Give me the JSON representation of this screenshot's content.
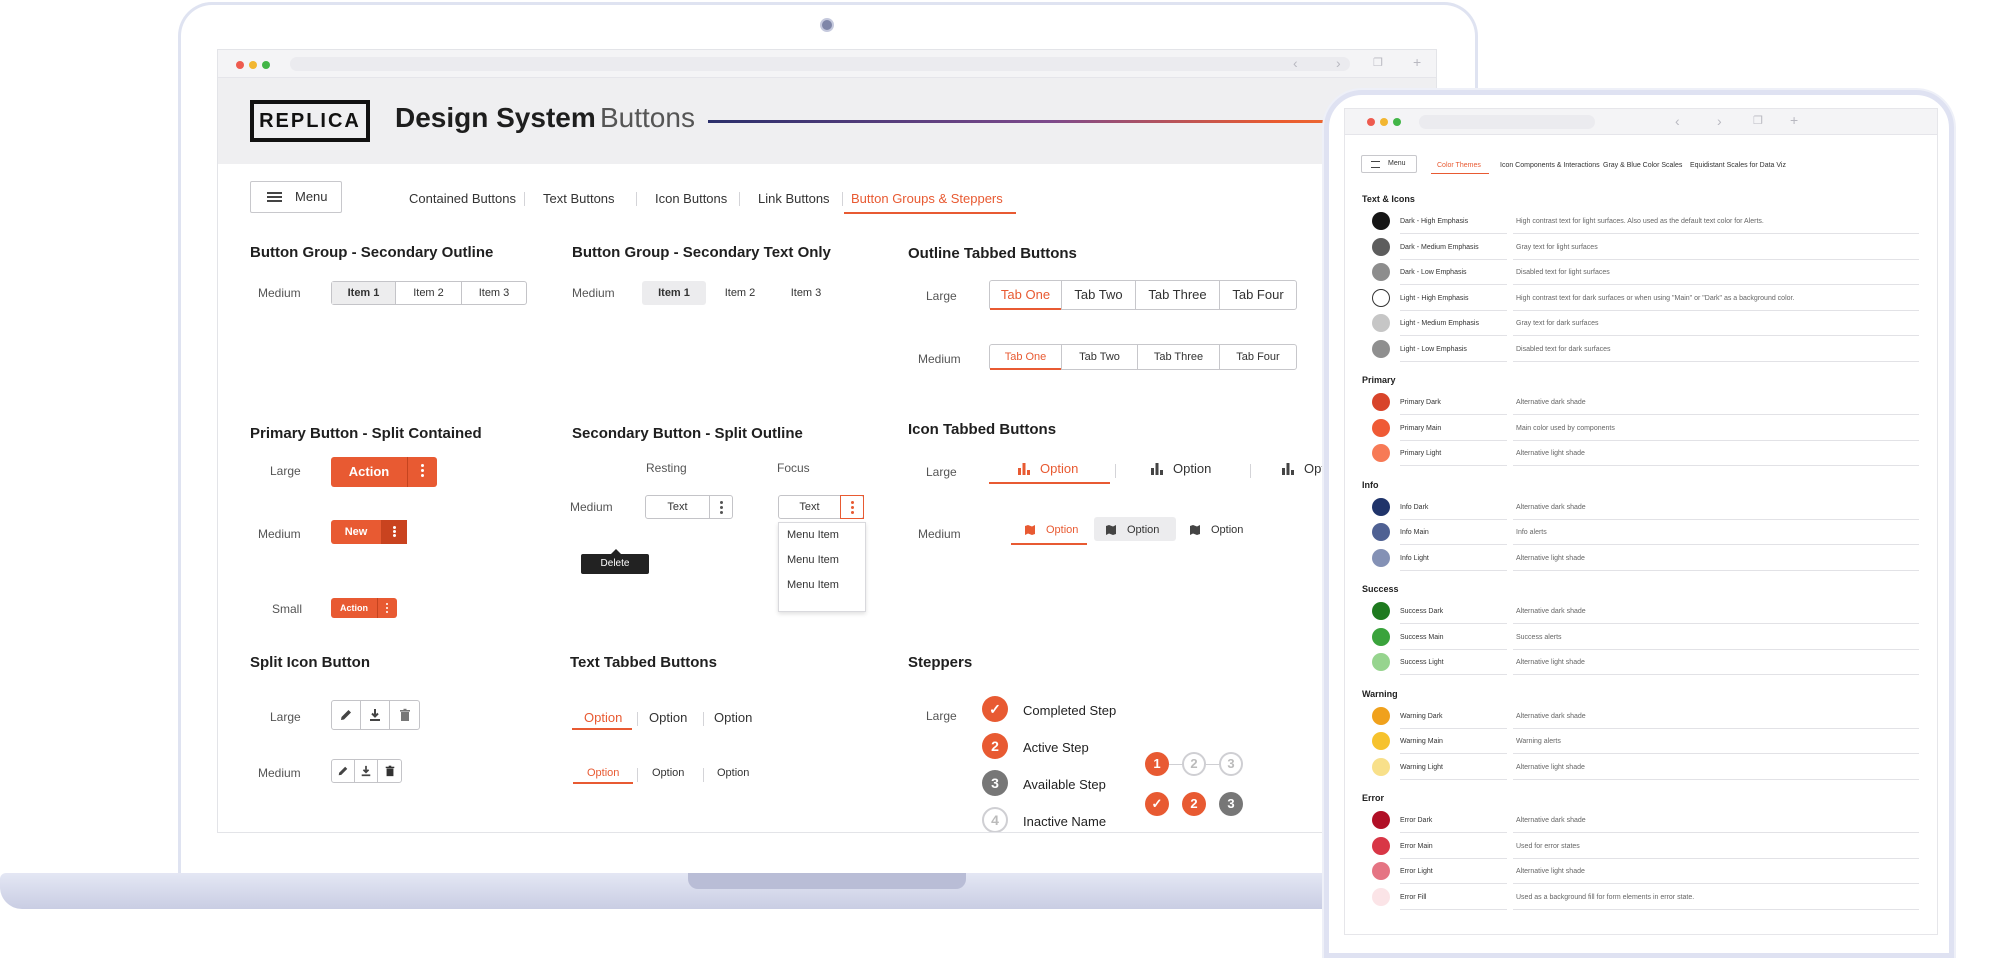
{
  "app": {
    "logo": "REPLICA",
    "title": "Design System",
    "subtitle": "Buttons",
    "menu_label": "Menu"
  },
  "top_tabs": [
    {
      "label": "Contained Buttons",
      "selected": false
    },
    {
      "label": "Text Buttons",
      "selected": false
    },
    {
      "label": "Icon Buttons",
      "selected": false
    },
    {
      "label": "Link Buttons",
      "selected": false
    },
    {
      "label": "Button Groups & Steppers",
      "selected": true
    }
  ],
  "accent_color": "#e85a32",
  "sections": {
    "bg_outline": {
      "title": "Button Group - Secondary Outline",
      "size": "Medium",
      "items": [
        "Item 1",
        "Item 2",
        "Item 3"
      ]
    },
    "bg_text": {
      "title": "Button Group - Secondary Text Only",
      "size": "Medium",
      "items": [
        "Item 1",
        "Item 2",
        "Item 3"
      ]
    },
    "outline_tabbed": {
      "title": "Outline Tabbed Buttons",
      "sizes": [
        "Large",
        "Medium"
      ],
      "tabs": [
        "Tab One",
        "Tab Two",
        "Tab Three",
        "Tab Four"
      ]
    },
    "split_contained": {
      "title": "Primary Button - Split Contained",
      "sizes": [
        "Large",
        "Medium",
        "Small"
      ],
      "large_label": "Action",
      "medium_label": "New",
      "small_label": "Action",
      "tooltip": "Delete"
    },
    "split_outline": {
      "title": "Secondary Button - Split Outline",
      "states": [
        "Resting",
        "Focus"
      ],
      "size": "Medium",
      "label": "Text",
      "menu_items": [
        "Menu Item",
        "Menu Item",
        "Menu Item"
      ]
    },
    "icon_tabbed": {
      "title": "Icon Tabbed Buttons",
      "sizes": [
        "Large",
        "Medium"
      ],
      "option_label": "Option",
      "large_partial": "Opti"
    },
    "split_icon": {
      "title": "Split Icon Button",
      "sizes": [
        "Large",
        "Medium"
      ],
      "icons": [
        "pencil-icon",
        "download-icon",
        "trash-icon"
      ]
    },
    "text_tabbed": {
      "title": "Text Tabbed Buttons",
      "options": [
        "Option",
        "Option",
        "Option"
      ]
    },
    "steppers": {
      "title": "Steppers",
      "size": "Large",
      "steps": [
        "Completed Step",
        "Active Step",
        "Available Step",
        "Inactive Name"
      ],
      "numbers_row": [
        "1",
        "2",
        "3"
      ],
      "status_row": [
        "2",
        "3"
      ]
    }
  },
  "tablet": {
    "menu_label": "Menu",
    "tabs": [
      {
        "label": "Color Themes",
        "selected": true
      },
      {
        "label": "Icon Components & Interactions",
        "selected": false
      },
      {
        "label": "Gray & Blue Color Scales",
        "selected": false
      },
      {
        "label": "Equidistant Scales for Data Viz",
        "selected": false
      }
    ],
    "groups": [
      {
        "title": "Text & Icons",
        "rows": [
          {
            "name": "Dark - High Emphasis",
            "desc": "High contrast text for light surfaces. Also used as the default text color for Alerts.",
            "color": "#161616"
          },
          {
            "name": "Dark - Medium Emphasis",
            "desc": "Gray text for light surfaces",
            "color": "#5d5d5d"
          },
          {
            "name": "Dark - Low Emphasis",
            "desc": "Disabled text for light surfaces",
            "color": "#8d8d8d"
          },
          {
            "name": "Light - High Emphasis",
            "desc": "High contrast text for dark surfaces or when using \"Main\" or \"Dark\" as a background color.",
            "color": "#ffffff"
          },
          {
            "name": "Light - Medium Emphasis",
            "desc": "Gray text for dark surfaces",
            "color": "#c6c6c6"
          },
          {
            "name": "Light - Low Emphasis",
            "desc": "Disabled text for dark surfaces",
            "color": "#8f8f8f"
          }
        ]
      },
      {
        "title": "Primary",
        "rows": [
          {
            "name": "Primary Dark",
            "desc": "Alternative dark shade",
            "color": "#d8442a"
          },
          {
            "name": "Primary Main",
            "desc": "Main color used by components",
            "color": "#ef5a35"
          },
          {
            "name": "Primary Light",
            "desc": "Alternative light shade",
            "color": "#f77a56"
          }
        ]
      },
      {
        "title": "Info",
        "rows": [
          {
            "name": "Info Dark",
            "desc": "Alternative dark shade",
            "color": "#20346a"
          },
          {
            "name": "Info Main",
            "desc": "Info alerts",
            "color": "#4f6193"
          },
          {
            "name": "Info Light",
            "desc": "Alternative light shade",
            "color": "#8491b5"
          }
        ]
      },
      {
        "title": "Success",
        "rows": [
          {
            "name": "Success Dark",
            "desc": "Alternative dark shade",
            "color": "#1e7a1f"
          },
          {
            "name": "Success Main",
            "desc": "Success alerts",
            "color": "#3aa33c"
          },
          {
            "name": "Success Light",
            "desc": "Alternative light shade",
            "color": "#96d48e"
          }
        ]
      },
      {
        "title": "Warning",
        "rows": [
          {
            "name": "Warning Dark",
            "desc": "Alternative dark shade",
            "color": "#f0a11c"
          },
          {
            "name": "Warning Main",
            "desc": "Warning alerts",
            "color": "#f6c22d"
          },
          {
            "name": "Warning Light",
            "desc": "Alternative light shade",
            "color": "#f8e08a"
          }
        ]
      },
      {
        "title": "Error",
        "rows": [
          {
            "name": "Error Dark",
            "desc": "Alternative dark shade",
            "color": "#b10f26"
          },
          {
            "name": "Error Main",
            "desc": "Used for error states",
            "color": "#d83646"
          },
          {
            "name": "Error Light",
            "desc": "Alternative light shade",
            "color": "#e57483"
          },
          {
            "name": "Error Fill",
            "desc": "Used as a background fill for form elements in error state.",
            "color": "#fbe4e7"
          }
        ]
      }
    ]
  }
}
